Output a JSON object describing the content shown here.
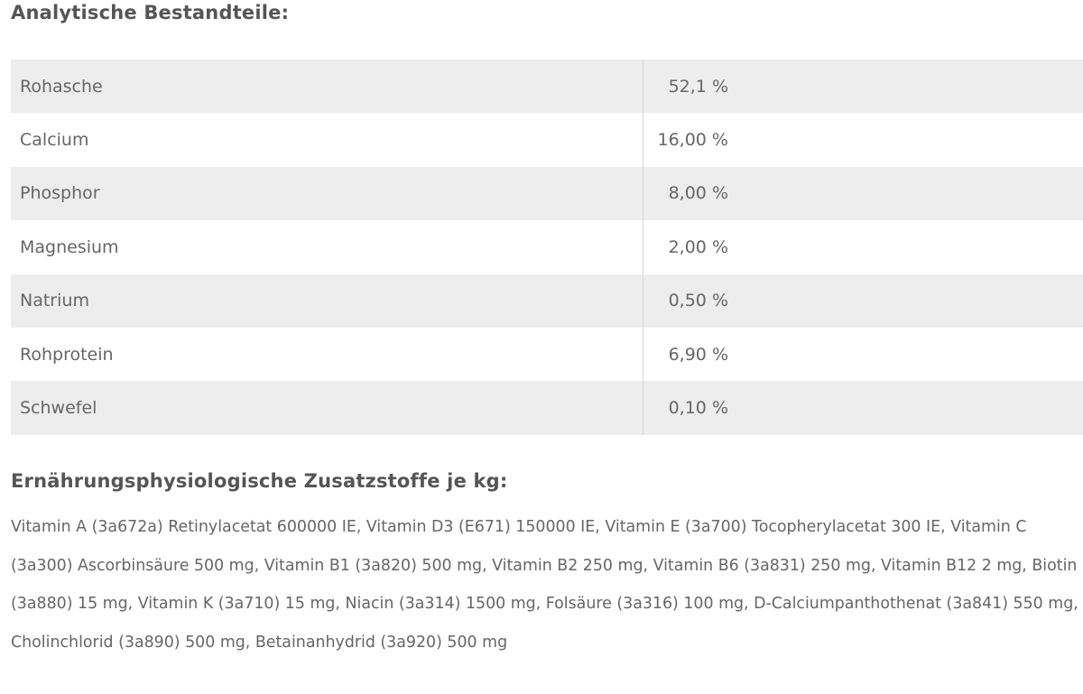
{
  "analytic": {
    "title": "Analytische Bestandteile:",
    "rows": [
      {
        "name": "Rohasche",
        "value": "52,1 %"
      },
      {
        "name": "Calcium",
        "value": "16,00 %"
      },
      {
        "name": "Phosphor",
        "value": "8,00 %"
      },
      {
        "name": "Magnesium",
        "value": "2,00 %"
      },
      {
        "name": "Natrium",
        "value": "0,50 %"
      },
      {
        "name": "Rohprotein",
        "value": "6,90 %"
      },
      {
        "name": "Schwefel",
        "value": "0,10 %"
      }
    ]
  },
  "additives": {
    "title": "Ernährungsphysiologische Zusatzstoffe je kg:",
    "text": "Vitamin A (3a672a) Retinylacetat 600000 IE, Vitamin D3 (E671) 150000 IE, Vitamin E (3a700) Tocopherylacetat 300 IE, Vitamin C (3a300) Ascorbinsäure 500 mg, Vitamin B1 (3a820) 500 mg, Vitamin B2 250 mg, Vitamin B6 (3a831) 250 mg, Vitamin B12 2 mg, Biotin (3a880) 15 mg, Vitamin K (3a710) 15 mg, Niacin (3a314) 1500 mg, Folsäure (3a316) 100 mg, D-Calciumpanthothenat (3a841) 550 mg, Cholinchlorid (3a890) 500 mg, Betainanhydrid (3a920) 500 mg"
  }
}
